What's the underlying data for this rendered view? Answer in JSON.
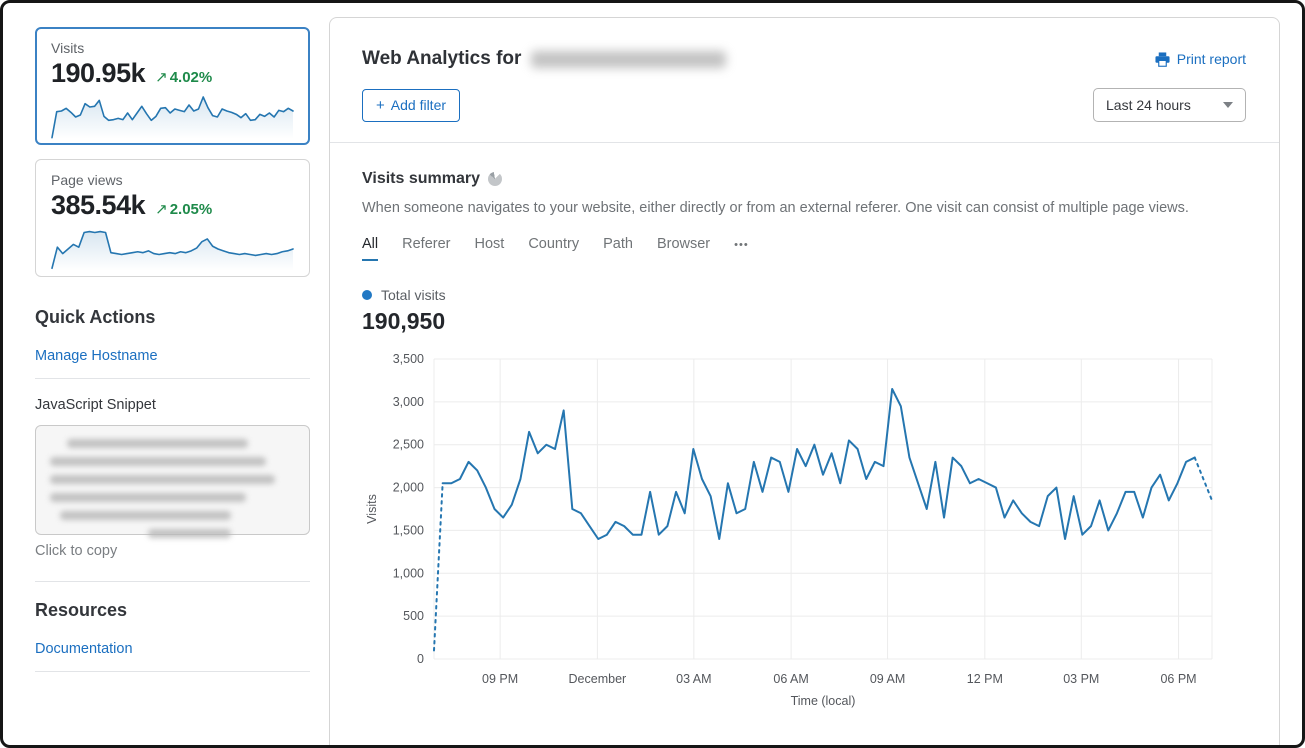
{
  "sidebar": {
    "visits_card": {
      "label": "Visits",
      "value": "190.95k",
      "arrow": "↗",
      "delta": "4.02%"
    },
    "pageviews_card": {
      "label": "Page views",
      "value": "385.54k",
      "arrow": "↗",
      "delta": "2.05%"
    },
    "quick_actions_title": "Quick Actions",
    "manage_hostname_link": "Manage Hostname",
    "js_snippet_label": "JavaScript Snippet",
    "click_to_copy": "Click to copy",
    "resources_title": "Resources",
    "documentation_link": "Documentation"
  },
  "header": {
    "title_prefix": "Web Analytics for",
    "print_report_label": "Print report",
    "plus_icon": "+",
    "add_filter_label": "Add filter",
    "time_range_value": "Last 24 hours"
  },
  "summary": {
    "title": "Visits summary",
    "description": "When someone navigates to your website, either directly or from an external referer. One visit can consist of multiple page views.",
    "tabs": [
      "All",
      "Referer",
      "Host",
      "Country",
      "Path",
      "Browser"
    ],
    "more_tab": "•••",
    "active_tab": "All",
    "legend_label": "Total visits",
    "total_value": "190,950"
  },
  "colors": {
    "accent_blue": "#1b6fc0",
    "chart_line": "#2576b0",
    "positive_green": "#1e8a4a",
    "selected_card_border": "#3b82c4",
    "legend_dot": "#2178c4"
  },
  "chart_data": [
    {
      "id": "visits-timeseries",
      "type": "line",
      "title": "Total visits",
      "ylabel": "Visits",
      "xlabel": "Time (local)",
      "ylim": [
        0,
        3500
      ],
      "grid": true,
      "legend": "Total visits",
      "color": "#2576b0",
      "dashed_head": 1,
      "dashed_tail": 2,
      "yticks": [
        {
          "v": 0,
          "label": "0"
        },
        {
          "v": 500,
          "label": "500"
        },
        {
          "v": 1000,
          "label": "1,000"
        },
        {
          "v": 1500,
          "label": "1,500"
        },
        {
          "v": 2000,
          "label": "2,000"
        },
        {
          "v": 2500,
          "label": "2,500"
        },
        {
          "v": 3000,
          "label": "3,000"
        },
        {
          "v": 3500,
          "label": "3,500"
        }
      ],
      "xticks": [
        {
          "label": "09 PM",
          "pos": 0.085
        },
        {
          "label": "December",
          "pos": 0.21
        },
        {
          "label": "03 AM",
          "pos": 0.334
        },
        {
          "label": "06 AM",
          "pos": 0.459
        },
        {
          "label": "09 AM",
          "pos": 0.583
        },
        {
          "label": "12 PM",
          "pos": 0.708
        },
        {
          "label": "03 PM",
          "pos": 0.832
        },
        {
          "label": "06 PM",
          "pos": 0.957
        }
      ],
      "values": [
        100,
        2050,
        2050,
        2100,
        2300,
        2200,
        2000,
        1750,
        1650,
        1800,
        2100,
        2650,
        2400,
        2500,
        2450,
        2900,
        1750,
        1700,
        1550,
        1400,
        1450,
        1600,
        1550,
        1450,
        1450,
        1950,
        1450,
        1550,
        1950,
        1700,
        2450,
        2100,
        1900,
        1400,
        2050,
        1700,
        1750,
        2300,
        1950,
        2350,
        2300,
        1950,
        2450,
        2250,
        2500,
        2150,
        2400,
        2050,
        2550,
        2450,
        2100,
        2300,
        2250,
        3150,
        2950,
        2350,
        2050,
        1750,
        2300,
        1650,
        2350,
        2250,
        2050,
        2100,
        2050,
        2000,
        1650,
        1850,
        1700,
        1600,
        1550,
        1900,
        2000,
        1400,
        1900,
        1450,
        1550,
        1850,
        1500,
        1700,
        1950,
        1950,
        1650,
        2000,
        2150,
        1850,
        2050,
        2300,
        2350,
        2100,
        1850
      ]
    },
    {
      "id": "visits-sparkline",
      "type": "line",
      "ylim": [
        0,
        3300
      ],
      "color": "#2576b0",
      "fill": true,
      "values": [
        100,
        2050,
        2100,
        2300,
        2000,
        1650,
        1800,
        2650,
        2400,
        2450,
        2900,
        1700,
        1400,
        1450,
        1550,
        1450,
        1950,
        1450,
        1950,
        2450,
        1900,
        1400,
        1700,
        2300,
        2350,
        1950,
        2250,
        2150,
        2050,
        2550,
        2100,
        2250,
        3150,
        2350,
        1750,
        1650,
        2250,
        2100,
        2000,
        1850,
        1600,
        1900,
        1400,
        1450,
        1850,
        1700,
        1950,
        1650,
        2150,
        2050,
        2300,
        2100
      ]
    },
    {
      "id": "pageviews-sparkline",
      "type": "line",
      "ylim": [
        0,
        2400
      ],
      "color": "#2576b0",
      "fill": true,
      "values": [
        150,
        1300,
        950,
        1200,
        1450,
        1300,
        2100,
        2150,
        2100,
        2150,
        2100,
        1000,
        950,
        900,
        950,
        1000,
        1050,
        1000,
        1100,
        950,
        900,
        950,
        1000,
        950,
        1050,
        1000,
        1100,
        1250,
        1600,
        1750,
        1350,
        1200,
        1100,
        1000,
        950,
        900,
        950,
        900,
        850,
        900,
        950,
        900,
        950,
        1050,
        1100,
        1200
      ]
    }
  ]
}
